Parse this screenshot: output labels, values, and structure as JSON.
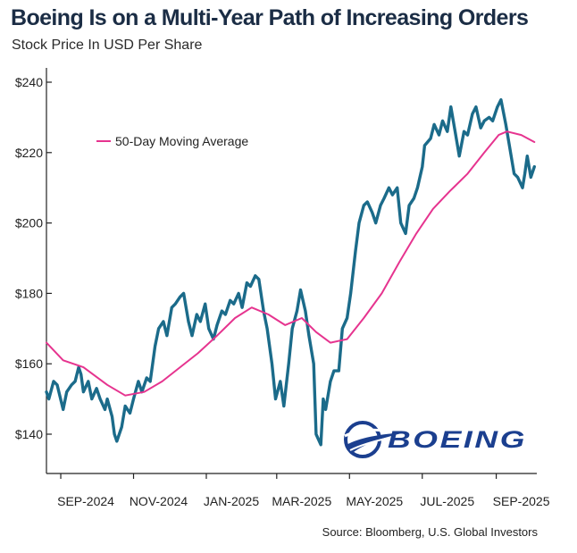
{
  "header": {
    "title": "Boeing Is on a Multi-Year Path of Increasing Orders",
    "subtitle": "Stock Price In USD Per Share"
  },
  "footer": {
    "source": "Source: Bloomberg, U.S. Global Investors"
  },
  "logo": {
    "text": "BOEING",
    "color": "#1b3f8f"
  },
  "colors": {
    "price": "#1b6b8a",
    "ma": "#e6348f",
    "axis": "#222222"
  },
  "chart_data": {
    "type": "line",
    "title": "Boeing Is on a Multi-Year Path of Increasing Orders",
    "subtitle": "Stock Price In USD Per Share",
    "xlabel": "",
    "ylabel": "",
    "xlim": [
      "2024-08-20",
      "2025-10-05"
    ],
    "ylim": [
      130,
      243
    ],
    "yticks": [
      140,
      160,
      180,
      200,
      220,
      240
    ],
    "ytick_labels": [
      "$140",
      "$160",
      "$180",
      "$200",
      "$220",
      "$240"
    ],
    "xticks": [
      "2024-09-01",
      "2024-11-01",
      "2025-01-01",
      "2025-03-01",
      "2025-05-01",
      "2025-07-01",
      "2025-09-01"
    ],
    "xtick_labels": [
      "SEP-2024",
      "NOV-2024",
      "JAN-2025",
      "MAR-2025",
      "MAY-2025",
      "JUL-2025",
      "SEP-2025"
    ],
    "grid": false,
    "legend": {
      "position": "top-left",
      "entries": [
        "50-Day Moving Average"
      ]
    },
    "series": [
      {
        "name": "",
        "color": "#1b6b8a",
        "points": [
          [
            "2024-08-20",
            152
          ],
          [
            "2024-08-22",
            150
          ],
          [
            "2024-08-26",
            155
          ],
          [
            "2024-08-29",
            154
          ],
          [
            "2024-09-03",
            147
          ],
          [
            "2024-09-06",
            152
          ],
          [
            "2024-09-10",
            154
          ],
          [
            "2024-09-13",
            155
          ],
          [
            "2024-09-16",
            159
          ],
          [
            "2024-09-18",
            157
          ],
          [
            "2024-09-20",
            152
          ],
          [
            "2024-09-24",
            155
          ],
          [
            "2024-09-27",
            150
          ],
          [
            "2024-10-01",
            153
          ],
          [
            "2024-10-04",
            150
          ],
          [
            "2024-10-08",
            147
          ],
          [
            "2024-10-10",
            150
          ],
          [
            "2024-10-14",
            145
          ],
          [
            "2024-10-16",
            140
          ],
          [
            "2024-10-18",
            138
          ],
          [
            "2024-10-22",
            142
          ],
          [
            "2024-10-25",
            148
          ],
          [
            "2024-10-29",
            146
          ],
          [
            "2024-11-01",
            150
          ],
          [
            "2024-11-05",
            155
          ],
          [
            "2024-11-08",
            152
          ],
          [
            "2024-11-12",
            156
          ],
          [
            "2024-11-15",
            155
          ],
          [
            "2024-11-19",
            165
          ],
          [
            "2024-11-22",
            170
          ],
          [
            "2024-11-26",
            172
          ],
          [
            "2024-11-29",
            168
          ],
          [
            "2024-12-03",
            176
          ],
          [
            "2024-12-06",
            177
          ],
          [
            "2024-12-10",
            179
          ],
          [
            "2024-12-13",
            180
          ],
          [
            "2024-12-17",
            172
          ],
          [
            "2024-12-20",
            168
          ],
          [
            "2024-12-24",
            174
          ],
          [
            "2024-12-27",
            172
          ],
          [
            "2024-12-31",
            177
          ],
          [
            "2025-01-03",
            170
          ],
          [
            "2025-01-07",
            167
          ],
          [
            "2025-01-10",
            171
          ],
          [
            "2025-01-14",
            175
          ],
          [
            "2025-01-17",
            174
          ],
          [
            "2025-01-21",
            178
          ],
          [
            "2025-01-24",
            177
          ],
          [
            "2025-01-28",
            180
          ],
          [
            "2025-01-31",
            176
          ],
          [
            "2025-02-04",
            183
          ],
          [
            "2025-02-07",
            182
          ],
          [
            "2025-02-11",
            185
          ],
          [
            "2025-02-14",
            184
          ],
          [
            "2025-02-18",
            175
          ],
          [
            "2025-02-21",
            170
          ],
          [
            "2025-02-25",
            160
          ],
          [
            "2025-02-28",
            150
          ],
          [
            "2025-03-04",
            155
          ],
          [
            "2025-03-07",
            148
          ],
          [
            "2025-03-11",
            160
          ],
          [
            "2025-03-14",
            170
          ],
          [
            "2025-03-18",
            175
          ],
          [
            "2025-03-21",
            181
          ],
          [
            "2025-03-25",
            175
          ],
          [
            "2025-03-28",
            168
          ],
          [
            "2025-04-01",
            160
          ],
          [
            "2025-04-03",
            140
          ],
          [
            "2025-04-07",
            137
          ],
          [
            "2025-04-09",
            150
          ],
          [
            "2025-04-11",
            147
          ],
          [
            "2025-04-15",
            155
          ],
          [
            "2025-04-18",
            158
          ],
          [
            "2025-04-22",
            158
          ],
          [
            "2025-04-25",
            170
          ],
          [
            "2025-04-29",
            173
          ],
          [
            "2025-05-02",
            180
          ],
          [
            "2025-05-06",
            192
          ],
          [
            "2025-05-09",
            200
          ],
          [
            "2025-05-13",
            205
          ],
          [
            "2025-05-16",
            206
          ],
          [
            "2025-05-20",
            203
          ],
          [
            "2025-05-23",
            200
          ],
          [
            "2025-05-27",
            205
          ],
          [
            "2025-05-30",
            207
          ],
          [
            "2025-06-03",
            210
          ],
          [
            "2025-06-06",
            208
          ],
          [
            "2025-06-10",
            210
          ],
          [
            "2025-06-13",
            200
          ],
          [
            "2025-06-17",
            197
          ],
          [
            "2025-06-20",
            205
          ],
          [
            "2025-06-24",
            207
          ],
          [
            "2025-06-27",
            210
          ],
          [
            "2025-07-01",
            216
          ],
          [
            "2025-07-03",
            222
          ],
          [
            "2025-07-08",
            224
          ],
          [
            "2025-07-11",
            228
          ],
          [
            "2025-07-15",
            225
          ],
          [
            "2025-07-18",
            229
          ],
          [
            "2025-07-22",
            226
          ],
          [
            "2025-07-25",
            233
          ],
          [
            "2025-07-29",
            225
          ],
          [
            "2025-08-01",
            219
          ],
          [
            "2025-08-05",
            226
          ],
          [
            "2025-08-08",
            225
          ],
          [
            "2025-08-12",
            231
          ],
          [
            "2025-08-15",
            233
          ],
          [
            "2025-08-19",
            227
          ],
          [
            "2025-08-22",
            229
          ],
          [
            "2025-08-26",
            230
          ],
          [
            "2025-08-29",
            229
          ],
          [
            "2025-09-02",
            233
          ],
          [
            "2025-09-05",
            235
          ],
          [
            "2025-09-09",
            228
          ],
          [
            "2025-09-12",
            222
          ],
          [
            "2025-09-16",
            214
          ],
          [
            "2025-09-19",
            213
          ],
          [
            "2025-09-23",
            210
          ],
          [
            "2025-09-25",
            214
          ],
          [
            "2025-09-27",
            219
          ],
          [
            "2025-09-30",
            213
          ],
          [
            "2025-10-03",
            216
          ]
        ]
      },
      {
        "name": "50-Day Moving Average",
        "color": "#e6348f",
        "points": [
          [
            "2024-08-20",
            166
          ],
          [
            "2024-09-03",
            161
          ],
          [
            "2024-09-20",
            159
          ],
          [
            "2024-10-10",
            154
          ],
          [
            "2024-10-25",
            151
          ],
          [
            "2024-11-10",
            152
          ],
          [
            "2024-11-25",
            155
          ],
          [
            "2024-12-10",
            159
          ],
          [
            "2024-12-25",
            163
          ],
          [
            "2025-01-10",
            168
          ],
          [
            "2025-01-25",
            173
          ],
          [
            "2025-02-08",
            176
          ],
          [
            "2025-02-22",
            174
          ],
          [
            "2025-03-08",
            171
          ],
          [
            "2025-03-22",
            173
          ],
          [
            "2025-04-03",
            169
          ],
          [
            "2025-04-15",
            166
          ],
          [
            "2025-04-29",
            167
          ],
          [
            "2025-05-13",
            173
          ],
          [
            "2025-05-28",
            180
          ],
          [
            "2025-06-12",
            189
          ],
          [
            "2025-06-26",
            197
          ],
          [
            "2025-07-10",
            204
          ],
          [
            "2025-07-24",
            209
          ],
          [
            "2025-08-08",
            214
          ],
          [
            "2025-08-22",
            220
          ],
          [
            "2025-09-03",
            225
          ],
          [
            "2025-09-10",
            226
          ],
          [
            "2025-09-22",
            225
          ],
          [
            "2025-10-03",
            223
          ]
        ]
      }
    ]
  }
}
